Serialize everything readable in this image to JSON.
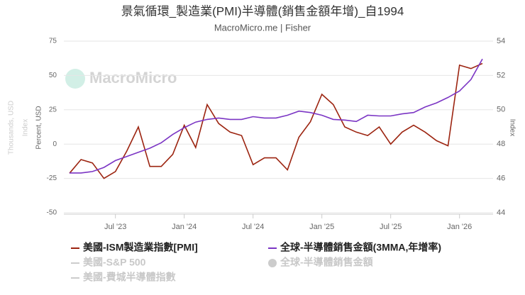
{
  "chart_data": {
    "type": "line",
    "title": "景氣循環_製造業(PMI)半導體(銷售金額年增)_自1994",
    "subtitle": "MacroMicro.me | Fisher",
    "watermark": "MacroMicro",
    "ylabel": "Percent, USD",
    "ylabel_hidden": [
      "Thousands, USD",
      "Index"
    ],
    "y2label": "Index",
    "grid": true,
    "x": [
      "2023-03",
      "2023-04",
      "2023-05",
      "2023-06",
      "2023-07",
      "2023-08",
      "2023-09",
      "2023-10",
      "2023-11",
      "2023-12",
      "2024-01",
      "2024-02",
      "2024-03",
      "2024-04",
      "2024-05",
      "2024-06",
      "2024-07",
      "2024-08",
      "2024-09",
      "2024-10",
      "2024-11",
      "2024-12",
      "2025-01",
      "2025-02",
      "2025-03",
      "2025-04",
      "2025-05",
      "2025-06",
      "2025-07",
      "2025-08",
      "2025-09",
      "2025-10",
      "2025-11",
      "2025-12",
      "2026-01",
      "2026-02",
      "2026-03"
    ],
    "xlim": [
      "2023-03",
      "2026-03"
    ],
    "xticks": [
      {
        "value": "2023-07",
        "label": "Jul '23"
      },
      {
        "value": "2024-01",
        "label": "Jan '24"
      },
      {
        "value": "2024-07",
        "label": "Jul '24"
      },
      {
        "value": "2025-01",
        "label": "Jan '25"
      },
      {
        "value": "2025-07",
        "label": "Jul '25"
      },
      {
        "value": "2026-01",
        "label": "Jan '26"
      }
    ],
    "ylim": [
      -50,
      75
    ],
    "yticks": [
      -50,
      -25,
      0,
      25,
      50,
      75
    ],
    "y2lim": [
      44,
      54
    ],
    "y2ticks": [
      44,
      46,
      48,
      50,
      52,
      54
    ],
    "series": [
      {
        "name": "美國-ISM製造業指數[PMI]",
        "color": "#9c2410",
        "axis": "y2",
        "values": [
          46.3,
          47.1,
          46.9,
          46.0,
          46.4,
          47.6,
          49.0,
          46.7,
          46.7,
          47.4,
          49.1,
          47.8,
          50.3,
          49.2,
          48.7,
          48.5,
          46.8,
          47.2,
          47.2,
          46.5,
          48.4,
          49.3,
          50.9,
          50.3,
          49.0,
          48.7,
          48.5,
          49.0,
          48.0,
          48.7,
          49.1,
          48.7,
          48.2,
          47.9,
          52.6,
          52.4,
          52.7
        ]
      },
      {
        "name": "全球-半導體銷售金額(3MMA,年增率)",
        "color": "#7b35c4",
        "axis": "y",
        "values": [
          -21,
          -21,
          -20,
          -17,
          -12,
          -9,
          -6,
          -3,
          1,
          7,
          12,
          16,
          18,
          19,
          18,
          18,
          20,
          19,
          19,
          21,
          24,
          23,
          21,
          18,
          17.5,
          16.5,
          21,
          20.5,
          20.5,
          22,
          23,
          27,
          30,
          34,
          38.7,
          47,
          62
        ]
      }
    ],
    "hidden_series": [
      {
        "name": "美國-S&P 500",
        "marker": "line"
      },
      {
        "name": "全球-半導體銷售金額",
        "marker": "circle"
      },
      {
        "name": "美國-費城半導體指數",
        "marker": "line"
      }
    ]
  }
}
